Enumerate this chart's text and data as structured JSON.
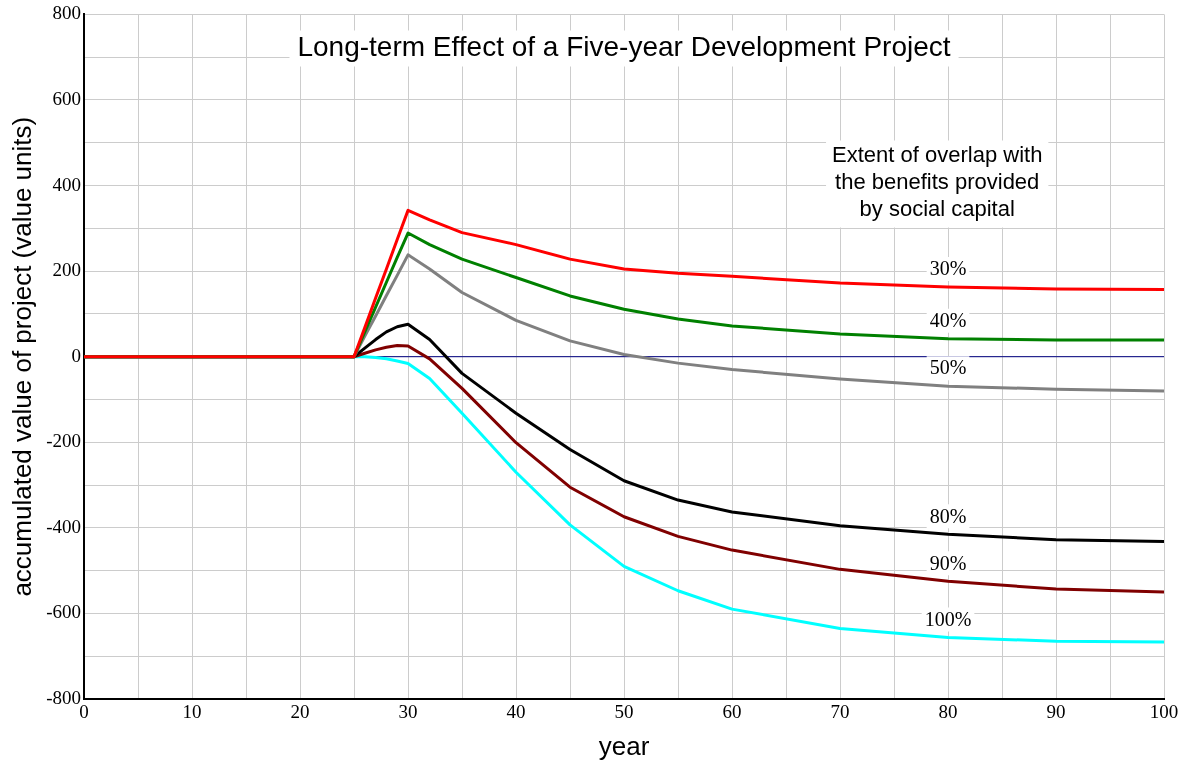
{
  "chart_data": {
    "type": "line",
    "title": "Long-term Effect of a Five-year Development Project",
    "xlabel": "year",
    "ylabel": "accumulated value of project (value units)",
    "legend_title": "Extent of overlap with\nthe benefits provided\nby social capital",
    "x": [
      0,
      25,
      26,
      27,
      28,
      29,
      30,
      32,
      35,
      40,
      45,
      50,
      55,
      60,
      70,
      80,
      90,
      100
    ],
    "series": [
      {
        "name": "30%",
        "color": "#ff0000",
        "values": [
          0,
          0,
          68,
          137,
          205,
          274,
          342,
          320,
          290,
          262,
          228,
          205,
          195,
          188,
          172,
          163,
          158,
          157
        ]
      },
      {
        "name": "40%",
        "color": "#008000",
        "values": [
          0,
          0,
          58,
          116,
          174,
          232,
          289,
          262,
          228,
          185,
          142,
          111,
          88,
          72,
          53,
          42,
          39,
          39
        ]
      },
      {
        "name": "50%",
        "color": "#808080",
        "values": [
          0,
          0,
          48,
          95,
          143,
          190,
          238,
          205,
          150,
          85,
          37,
          5,
          -15,
          -30,
          -52,
          -69,
          -76,
          -80
        ]
      },
      {
        "name": "80%",
        "color": "#000000",
        "values": [
          0,
          0,
          20,
          40,
          58,
          70,
          76,
          40,
          -39,
          -132,
          -217,
          -290,
          -335,
          -363,
          -395,
          -415,
          -428,
          -432
        ]
      },
      {
        "name": "90%",
        "color": "#800000",
        "values": [
          0,
          0,
          8,
          16,
          22,
          26,
          25,
          -5,
          -74,
          -201,
          -305,
          -374,
          -420,
          -452,
          -497,
          -525,
          -543,
          -550
        ]
      },
      {
        "name": "100%",
        "color": "#00ffff",
        "values": [
          0,
          0,
          0,
          -2,
          -5,
          -10,
          -16,
          -51,
          -132,
          -270,
          -393,
          -490,
          -547,
          -590,
          -635,
          -656,
          -665,
          -667
        ]
      }
    ],
    "xlim": [
      0,
      100
    ],
    "xticks": [
      0,
      {
        "value": 5,
        "label": null
      },
      10,
      {
        "value": 15,
        "label": null
      },
      20,
      {
        "value": 25,
        "label": null
      },
      30,
      {
        "value": 35,
        "label": null
      },
      40,
      {
        "value": 45,
        "label": null
      },
      50,
      {
        "value": 55,
        "label": null
      },
      60,
      {
        "value": 65,
        "label": null
      },
      70,
      {
        "value": 75,
        "label": null
      },
      80,
      {
        "value": 85,
        "label": null
      },
      90,
      {
        "value": 95,
        "label": null
      },
      100
    ],
    "ylim": [
      -800,
      800
    ],
    "yticks": [
      -800,
      {
        "value": -700,
        "label": null
      },
      -600,
      {
        "value": -500,
        "label": null
      },
      -400,
      {
        "value": -300,
        "label": null
      },
      -200,
      {
        "value": -100,
        "label": null
      },
      0,
      {
        "value": 100,
        "label": null
      },
      200,
      {
        "value": 300,
        "label": null
      },
      400,
      {
        "value": 500,
        "label": null
      },
      600,
      {
        "value": 700,
        "label": null
      },
      800
    ],
    "ref_lines": [
      {
        "axis": "y",
        "value": 0,
        "color": "#000080"
      }
    ],
    "grid": true,
    "legend": false,
    "marker": "none",
    "line_style": "solid"
  }
}
